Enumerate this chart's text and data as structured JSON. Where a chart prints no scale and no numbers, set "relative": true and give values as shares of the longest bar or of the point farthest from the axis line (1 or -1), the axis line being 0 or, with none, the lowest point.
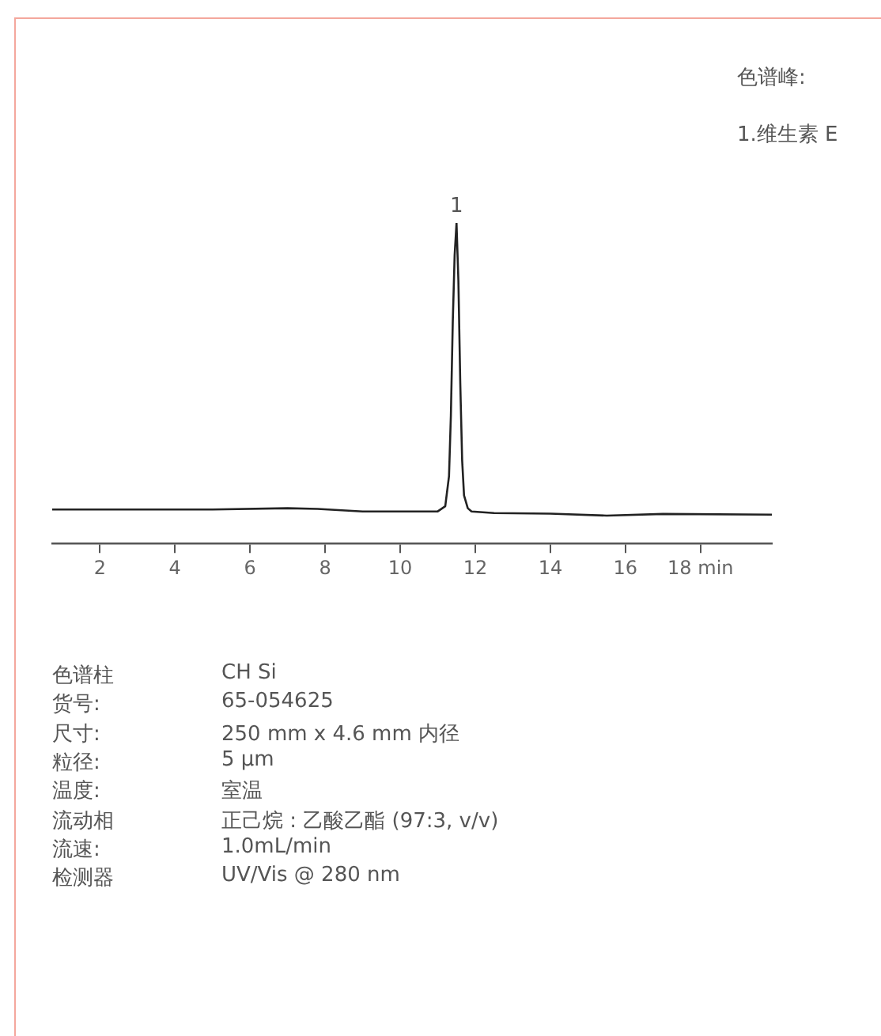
{
  "chart_data": {
    "type": "line",
    "relative": true,
    "x": [
      0.73,
      3,
      5,
      7,
      7.8,
      9,
      10.5,
      11,
      11.2,
      11.3,
      11.35,
      11.4,
      11.45,
      11.5,
      11.55,
      11.6,
      11.65,
      11.7,
      11.8,
      11.9,
      12.5,
      14,
      15.5,
      17,
      19.9
    ],
    "series": [
      {
        "color": "#222222",
        "values": [
          0.106,
          0.106,
          0.106,
          0.11,
          0.108,
          0.1,
          0.1,
          0.1,
          0.116,
          0.21,
          0.4,
          0.69,
          0.9,
          1,
          0.82,
          0.5,
          0.26,
          0.15,
          0.11,
          0.1,
          0.095,
          0.093,
          0.087,
          0.092,
          0.09
        ]
      }
    ],
    "xlim": [
      0.73,
      19.9
    ],
    "xticks": [
      2,
      4,
      6,
      8,
      10,
      12,
      14,
      16,
      {
        "value": 18,
        "label": "18 min"
      }
    ],
    "grid": false,
    "legend": false,
    "marker": "none",
    "line_style": "solid",
    "annotations": [
      {
        "text": "1",
        "x": 11.5,
        "y": 1
      },
      "色谱峰:",
      "1.维生素 E",
      "色谱柱",
      "CH Si",
      "货号:",
      "65-054625",
      "尺寸:",
      "250 mm x 4.6 mm 内径",
      "粒径:",
      "5 µm",
      "温度:",
      "室温",
      "流动相",
      "正己烷 : 乙酸乙酯 (97:3, v/v)",
      "流速:",
      "1.0mL/min",
      "检测器",
      "UV/Vis @ 280 nm"
    ]
  }
}
